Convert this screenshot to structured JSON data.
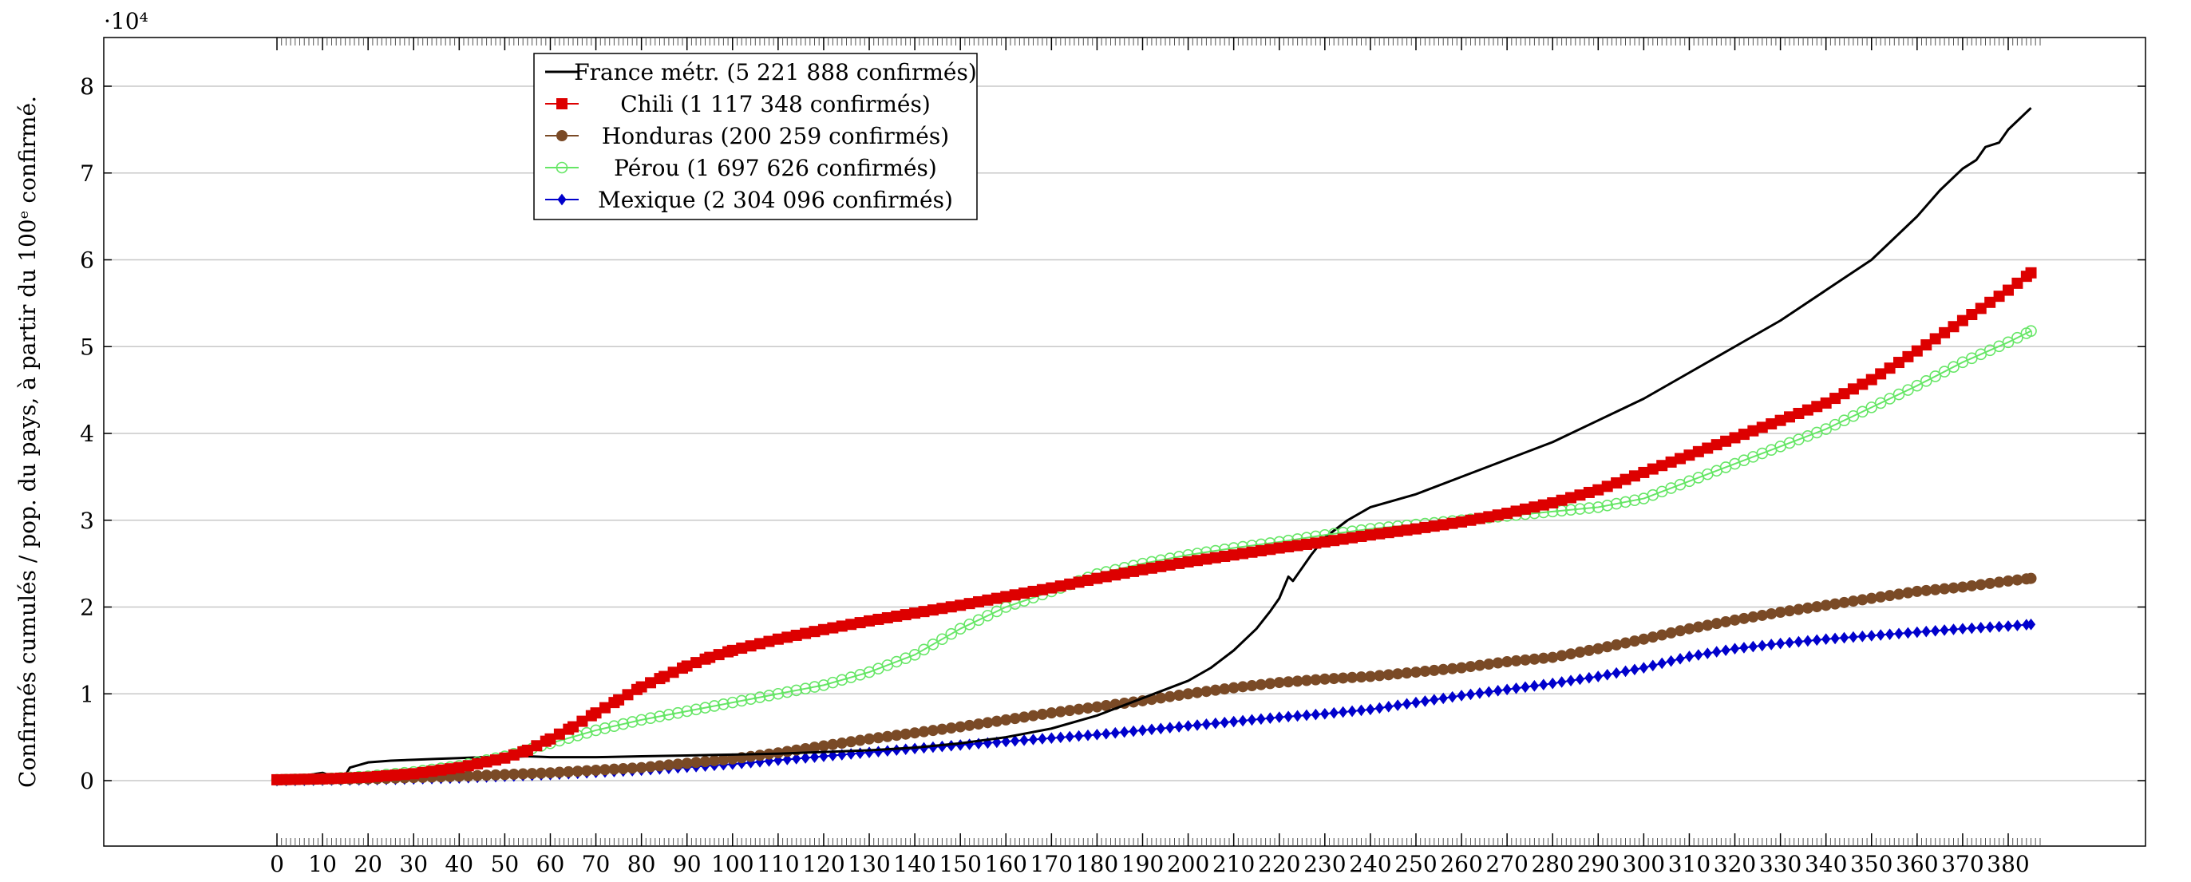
{
  "chart_data": {
    "type": "line",
    "title": "",
    "xlabel": "",
    "ylabel": "Confirmés cumulés / pop. du pays, à partir du 100ᵉ confirmé.",
    "y_scale_note": "·10⁴",
    "xlim": [
      0,
      387
    ],
    "ylim": [
      -0.75,
      8.55
    ],
    "x_ticks": [
      0,
      10,
      20,
      30,
      40,
      50,
      60,
      70,
      80,
      90,
      100,
      110,
      120,
      130,
      140,
      150,
      160,
      170,
      180,
      190,
      200,
      210,
      220,
      230,
      240,
      250,
      260,
      270,
      280,
      290,
      300,
      310,
      320,
      330,
      340,
      350,
      360,
      370,
      380
    ],
    "y_ticks": [
      0,
      1,
      2,
      3,
      4,
      5,
      6,
      7,
      8
    ],
    "grid": "horizontal",
    "legend_position": "top-left",
    "series": [
      {
        "name": "France métr. (5 221 888 confirmés)",
        "color": "#000000",
        "marker": "none",
        "points": [
          [
            0,
            0.02
          ],
          [
            5,
            0.05
          ],
          [
            10,
            0.09
          ],
          [
            12,
            0.05
          ],
          [
            15,
            0.06
          ],
          [
            16,
            0.15
          ],
          [
            18,
            0.18
          ],
          [
            20,
            0.21
          ],
          [
            25,
            0.23
          ],
          [
            30,
            0.24
          ],
          [
            35,
            0.25
          ],
          [
            40,
            0.26
          ],
          [
            45,
            0.27
          ],
          [
            50,
            0.27
          ],
          [
            55,
            0.28
          ],
          [
            60,
            0.27
          ],
          [
            70,
            0.27
          ],
          [
            80,
            0.28
          ],
          [
            90,
            0.29
          ],
          [
            100,
            0.3
          ],
          [
            110,
            0.31
          ],
          [
            120,
            0.33
          ],
          [
            130,
            0.35
          ],
          [
            140,
            0.38
          ],
          [
            150,
            0.43
          ],
          [
            160,
            0.5
          ],
          [
            170,
            0.6
          ],
          [
            180,
            0.75
          ],
          [
            190,
            0.95
          ],
          [
            195,
            1.05
          ],
          [
            200,
            1.15
          ],
          [
            205,
            1.3
          ],
          [
            210,
            1.5
          ],
          [
            215,
            1.75
          ],
          [
            218,
            1.95
          ],
          [
            220,
            2.1
          ],
          [
            222,
            2.35
          ],
          [
            223,
            2.3
          ],
          [
            225,
            2.45
          ],
          [
            227,
            2.6
          ],
          [
            230,
            2.8
          ],
          [
            235,
            3.0
          ],
          [
            240,
            3.15
          ],
          [
            250,
            3.3
          ],
          [
            260,
            3.5
          ],
          [
            270,
            3.7
          ],
          [
            280,
            3.9
          ],
          [
            290,
            4.15
          ],
          [
            300,
            4.4
          ],
          [
            310,
            4.7
          ],
          [
            320,
            5.0
          ],
          [
            330,
            5.3
          ],
          [
            340,
            5.65
          ],
          [
            350,
            6.0
          ],
          [
            360,
            6.5
          ],
          [
            365,
            6.8
          ],
          [
            370,
            7.05
          ],
          [
            373,
            7.15
          ],
          [
            375,
            7.3
          ],
          [
            378,
            7.35
          ],
          [
            380,
            7.5
          ],
          [
            385,
            7.75
          ]
        ]
      },
      {
        "name": "Chili (1 117 348 confirmés)",
        "color": "#dd0000",
        "marker": "square",
        "points": [
          [
            0,
            0.01
          ],
          [
            10,
            0.02
          ],
          [
            20,
            0.04
          ],
          [
            30,
            0.08
          ],
          [
            40,
            0.15
          ],
          [
            50,
            0.26
          ],
          [
            55,
            0.35
          ],
          [
            60,
            0.48
          ],
          [
            65,
            0.62
          ],
          [
            70,
            0.78
          ],
          [
            75,
            0.93
          ],
          [
            80,
            1.08
          ],
          [
            85,
            1.2
          ],
          [
            90,
            1.32
          ],
          [
            95,
            1.42
          ],
          [
            100,
            1.5
          ],
          [
            110,
            1.63
          ],
          [
            120,
            1.74
          ],
          [
            130,
            1.84
          ],
          [
            140,
            1.93
          ],
          [
            150,
            2.02
          ],
          [
            160,
            2.12
          ],
          [
            170,
            2.22
          ],
          [
            180,
            2.33
          ],
          [
            190,
            2.43
          ],
          [
            200,
            2.52
          ],
          [
            210,
            2.6
          ],
          [
            220,
            2.68
          ],
          [
            230,
            2.75
          ],
          [
            240,
            2.83
          ],
          [
            250,
            2.9
          ],
          [
            260,
            2.98
          ],
          [
            270,
            3.08
          ],
          [
            280,
            3.2
          ],
          [
            290,
            3.35
          ],
          [
            300,
            3.55
          ],
          [
            310,
            3.75
          ],
          [
            320,
            3.95
          ],
          [
            330,
            4.15
          ],
          [
            340,
            4.35
          ],
          [
            350,
            4.62
          ],
          [
            360,
            4.95
          ],
          [
            370,
            5.3
          ],
          [
            380,
            5.65
          ],
          [
            385,
            5.85
          ]
        ]
      },
      {
        "name": "Honduras (200 259 confirmés)",
        "color": "#7a4a26",
        "marker": "circle",
        "points": [
          [
            0,
            0.01
          ],
          [
            20,
            0.02
          ],
          [
            40,
            0.05
          ],
          [
            60,
            0.09
          ],
          [
            80,
            0.15
          ],
          [
            100,
            0.25
          ],
          [
            110,
            0.32
          ],
          [
            120,
            0.4
          ],
          [
            130,
            0.48
          ],
          [
            140,
            0.55
          ],
          [
            150,
            0.62
          ],
          [
            160,
            0.7
          ],
          [
            170,
            0.78
          ],
          [
            180,
            0.85
          ],
          [
            190,
            0.92
          ],
          [
            200,
            1.0
          ],
          [
            210,
            1.07
          ],
          [
            220,
            1.13
          ],
          [
            230,
            1.17
          ],
          [
            240,
            1.2
          ],
          [
            250,
            1.25
          ],
          [
            260,
            1.3
          ],
          [
            270,
            1.37
          ],
          [
            280,
            1.42
          ],
          [
            290,
            1.52
          ],
          [
            300,
            1.63
          ],
          [
            310,
            1.75
          ],
          [
            320,
            1.85
          ],
          [
            330,
            1.94
          ],
          [
            340,
            2.02
          ],
          [
            350,
            2.1
          ],
          [
            360,
            2.18
          ],
          [
            370,
            2.23
          ],
          [
            380,
            2.3
          ],
          [
            385,
            2.33
          ]
        ]
      },
      {
        "name": "Pérou (1 697 626 confirmés)",
        "color": "#66e666",
        "marker": "circle-open",
        "points": [
          [
            0,
            0.01
          ],
          [
            10,
            0.02
          ],
          [
            20,
            0.05
          ],
          [
            30,
            0.1
          ],
          [
            40,
            0.17
          ],
          [
            50,
            0.28
          ],
          [
            60,
            0.43
          ],
          [
            70,
            0.58
          ],
          [
            80,
            0.7
          ],
          [
            90,
            0.8
          ],
          [
            100,
            0.9
          ],
          [
            110,
            1.0
          ],
          [
            120,
            1.1
          ],
          [
            130,
            1.25
          ],
          [
            140,
            1.45
          ],
          [
            150,
            1.75
          ],
          [
            160,
            2.0
          ],
          [
            170,
            2.18
          ],
          [
            180,
            2.38
          ],
          [
            190,
            2.5
          ],
          [
            200,
            2.6
          ],
          [
            210,
            2.68
          ],
          [
            220,
            2.75
          ],
          [
            230,
            2.83
          ],
          [
            240,
            2.9
          ],
          [
            250,
            2.95
          ],
          [
            260,
            3.0
          ],
          [
            270,
            3.05
          ],
          [
            280,
            3.1
          ],
          [
            290,
            3.15
          ],
          [
            300,
            3.25
          ],
          [
            310,
            3.45
          ],
          [
            320,
            3.65
          ],
          [
            330,
            3.85
          ],
          [
            340,
            4.05
          ],
          [
            350,
            4.3
          ],
          [
            360,
            4.55
          ],
          [
            370,
            4.82
          ],
          [
            380,
            5.05
          ],
          [
            385,
            5.18
          ]
        ]
      },
      {
        "name": "Mexique (2 304 096 confirmés)",
        "color": "#0000cc",
        "marker": "diamond",
        "points": [
          [
            0,
            0.0
          ],
          [
            20,
            0.01
          ],
          [
            40,
            0.03
          ],
          [
            60,
            0.07
          ],
          [
            80,
            0.12
          ],
          [
            100,
            0.19
          ],
          [
            120,
            0.28
          ],
          [
            140,
            0.37
          ],
          [
            160,
            0.45
          ],
          [
            180,
            0.53
          ],
          [
            190,
            0.58
          ],
          [
            200,
            0.63
          ],
          [
            210,
            0.68
          ],
          [
            220,
            0.73
          ],
          [
            230,
            0.77
          ],
          [
            240,
            0.82
          ],
          [
            250,
            0.9
          ],
          [
            260,
            0.98
          ],
          [
            270,
            1.05
          ],
          [
            280,
            1.12
          ],
          [
            290,
            1.2
          ],
          [
            300,
            1.3
          ],
          [
            310,
            1.43
          ],
          [
            320,
            1.52
          ],
          [
            330,
            1.58
          ],
          [
            340,
            1.63
          ],
          [
            350,
            1.67
          ],
          [
            360,
            1.71
          ],
          [
            370,
            1.75
          ],
          [
            380,
            1.78
          ],
          [
            385,
            1.8
          ]
        ]
      }
    ]
  }
}
